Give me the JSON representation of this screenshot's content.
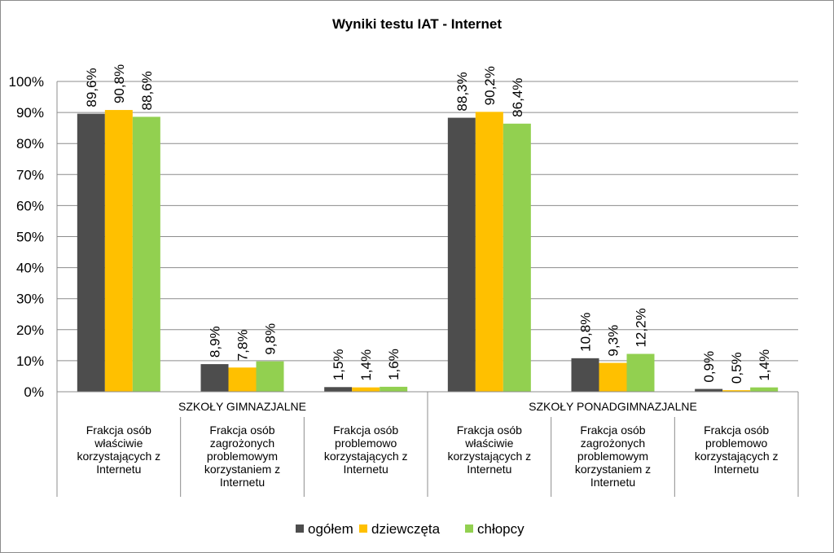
{
  "chart_data": {
    "type": "bar",
    "title": "Wyniki testu IAT - Internet",
    "yticks": [
      "0%",
      "10%",
      "20%",
      "30%",
      "40%",
      "50%",
      "60%",
      "70%",
      "80%",
      "90%",
      "100%"
    ],
    "ylim": [
      0,
      100
    ],
    "grid": true,
    "legend_position": "bottom",
    "groups": [
      {
        "label": "SZKOŁY GIMNAZJALNE",
        "categories": [
          [
            "Frakcja osób",
            "właściwie",
            "korzystających z",
            "Internetu"
          ],
          [
            "Frakcja osób",
            "zagrożonych",
            "problemowym",
            "korzystaniem z",
            "Internetu"
          ],
          [
            "Frakcja osób",
            "problemowo",
            "korzystających z",
            "Internetu"
          ]
        ]
      },
      {
        "label": "SZKOŁY PONADGIMNAZJALNE",
        "categories": [
          [
            "Frakcja osób",
            "właściwie",
            "korzystających z",
            "Internetu"
          ],
          [
            "Frakcja osób",
            "zagrożonych",
            "problemowym",
            "korzystaniem z",
            "Internetu"
          ],
          [
            "Frakcja osób",
            "problemowo",
            "korzystających z",
            "Internetu"
          ]
        ]
      }
    ],
    "series": [
      {
        "name": "ogółem",
        "color": "#4d4d4d",
        "values": [
          89.6,
          8.9,
          1.5,
          88.3,
          10.8,
          0.9
        ],
        "labels": [
          "89,6%",
          "8,9%",
          "1,5%",
          "88,3%",
          "10,8%",
          "0,9%"
        ]
      },
      {
        "name": "dziewczęta",
        "color": "#ffc000",
        "values": [
          90.8,
          7.8,
          1.4,
          90.2,
          9.3,
          0.5
        ],
        "labels": [
          "90,8%",
          "7,8%",
          "1,4%",
          "90,2%",
          "9,3%",
          "0,5%"
        ]
      },
      {
        "name": "chłopcy",
        "color": "#92d050",
        "values": [
          88.6,
          9.8,
          1.6,
          86.4,
          12.2,
          1.4
        ],
        "labels": [
          "88,6%",
          "9,8%",
          "1,6%",
          "86,4%",
          "12,2%",
          "1,4%"
        ]
      }
    ]
  }
}
